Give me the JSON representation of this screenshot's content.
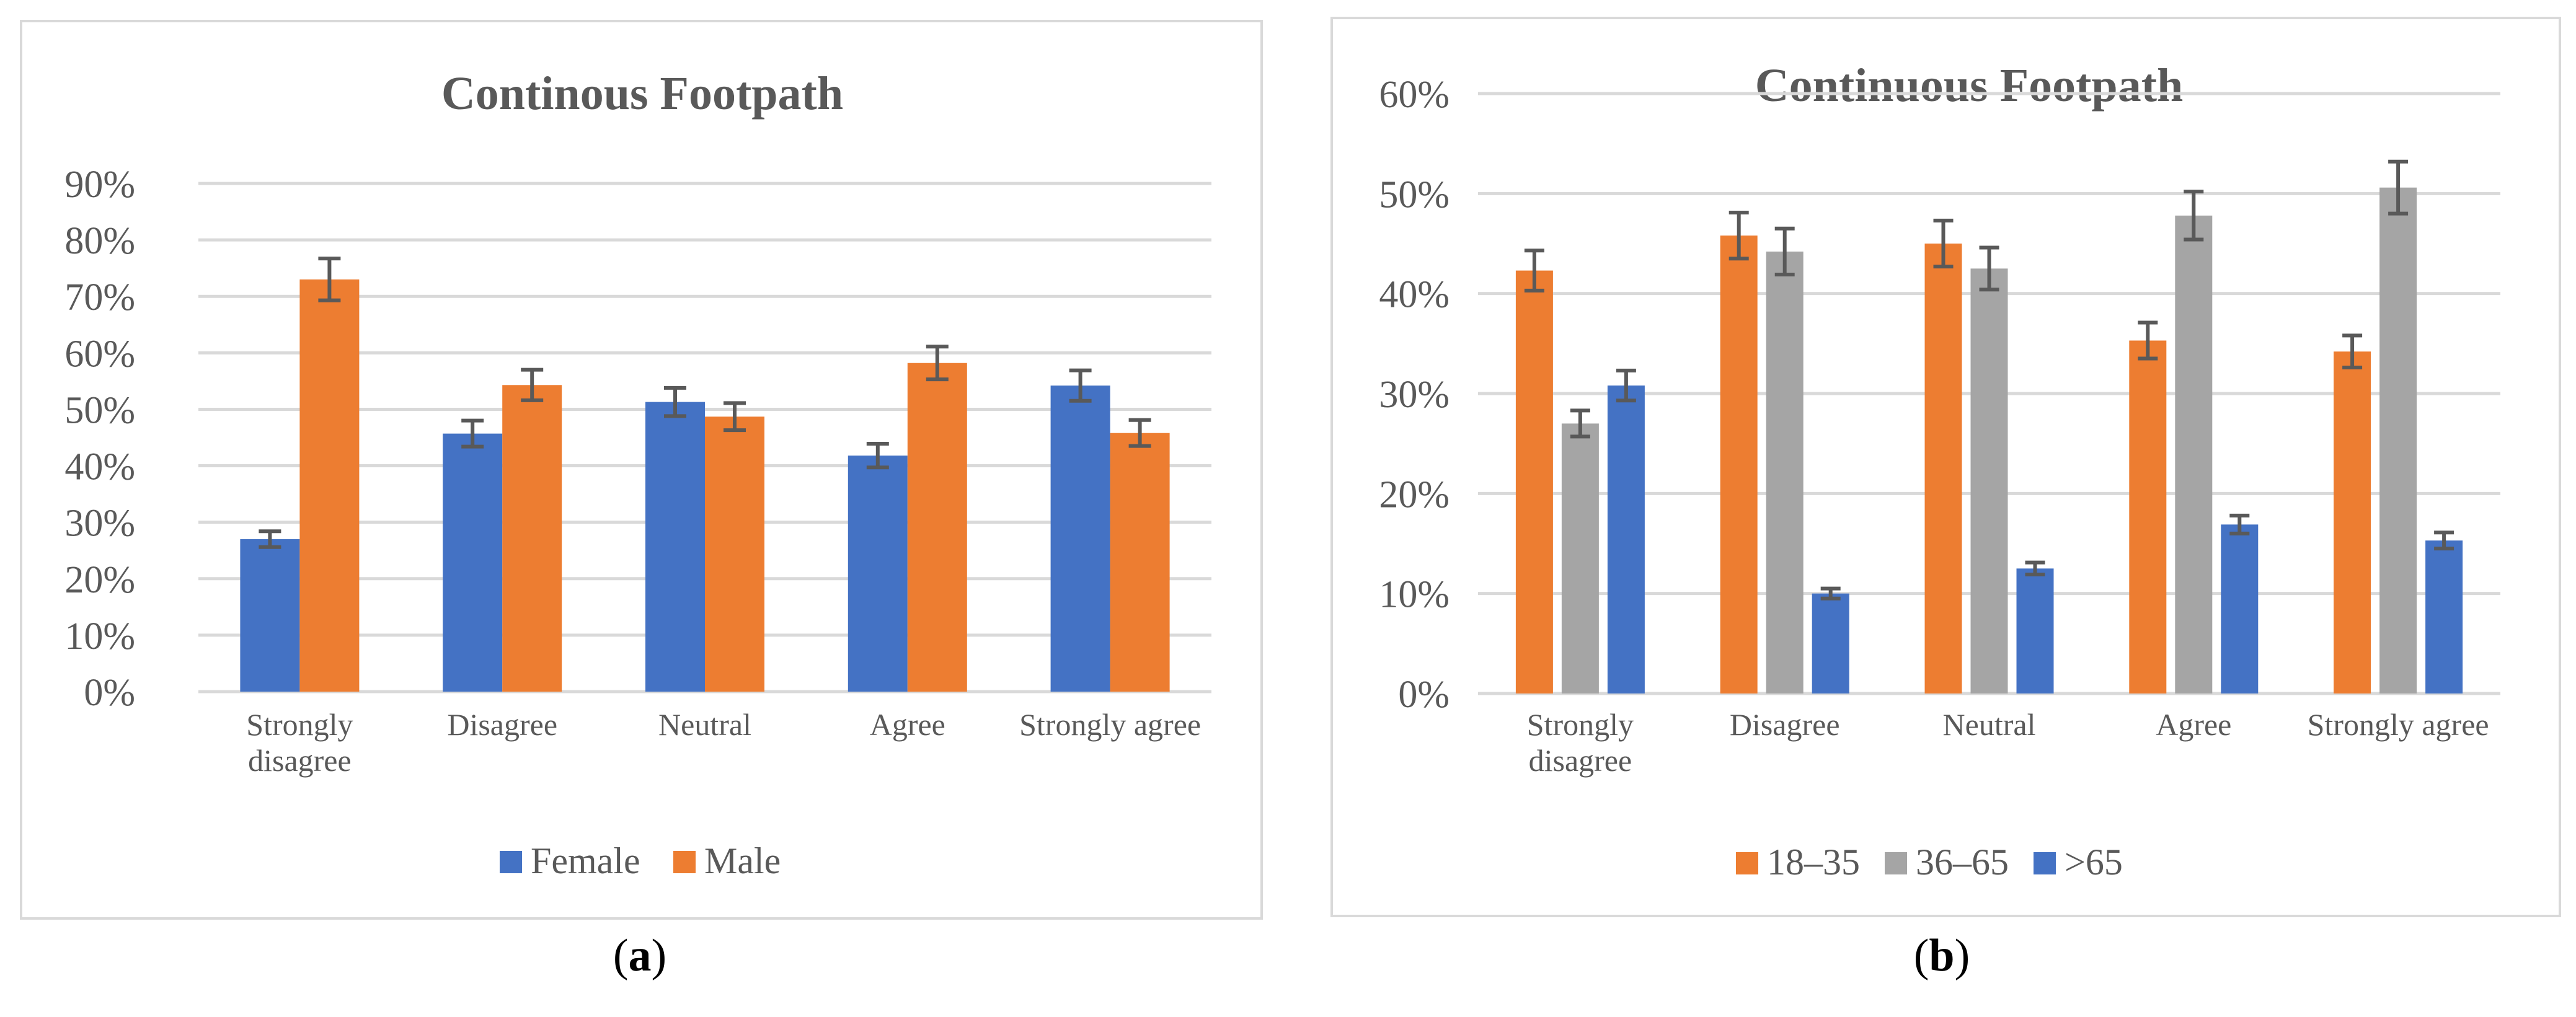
{
  "chart_data": [
    {
      "type": "bar",
      "title": "Continous Footpath",
      "categories": [
        "Strongly disagree",
        "Disagree",
        "Neutral",
        "Agree",
        "Strongly agree"
      ],
      "category_lines": [
        [
          "Strongly",
          "disagree"
        ],
        [
          "Disagree"
        ],
        [
          "Neutral"
        ],
        [
          "Agree"
        ],
        [
          "Strongly agree"
        ]
      ],
      "series": [
        {
          "name": "Female",
          "color": "#4472c4",
          "values": [
            27,
            45.7,
            51.3,
            41.8,
            54.2
          ],
          "errors": [
            1.4,
            2.3,
            2.5,
            2.1,
            2.7
          ]
        },
        {
          "name": "Male",
          "color": "#ed7d31",
          "values": [
            73,
            54.3,
            48.7,
            58.2,
            45.8
          ],
          "errors": [
            3.7,
            2.7,
            2.4,
            2.9,
            2.3
          ]
        }
      ],
      "y_ticks": [
        "0%",
        "10%",
        "20%",
        "30%",
        "40%",
        "50%",
        "60%",
        "70%",
        "80%",
        "90%"
      ],
      "ylim": [
        0,
        90
      ],
      "xlabel": "",
      "ylabel": "",
      "grid": true,
      "legend": "bottom"
    },
    {
      "type": "bar",
      "title": "Continuous Footpath",
      "categories": [
        "Strongly disagree",
        "Disagree",
        "Neutral",
        "Agree",
        "Strongly agree"
      ],
      "category_lines": [
        [
          "Strongly",
          "disagree"
        ],
        [
          "Disagree"
        ],
        [
          "Neutral"
        ],
        [
          "Agree"
        ],
        [
          "Strongly agree"
        ]
      ],
      "series": [
        {
          "name": "18–35",
          "color": "#ed7d31",
          "values": [
            42.3,
            45.8,
            45.0,
            35.3,
            34.2
          ],
          "errors": [
            2.0,
            2.3,
            2.3,
            1.8,
            1.6
          ]
        },
        {
          "name": "36–65",
          "color": "#a5a5a5",
          "values": [
            27.0,
            44.2,
            42.5,
            47.8,
            50.6
          ],
          "errors": [
            1.3,
            2.3,
            2.1,
            2.4,
            2.6
          ]
        },
        {
          "name": ">65",
          "color": "#4472c4",
          "values": [
            30.8,
            10.0,
            12.5,
            16.9,
            15.3
          ],
          "errors": [
            1.5,
            0.5,
            0.6,
            0.9,
            0.8
          ]
        }
      ],
      "y_ticks": [
        "0%",
        "10%",
        "20%",
        "30%",
        "40%",
        "50%",
        "60%"
      ],
      "ylim": [
        0,
        60
      ],
      "xlabel": "",
      "ylabel": "",
      "grid": true,
      "legend": "bottom"
    }
  ],
  "captions": [
    {
      "prefix": "(",
      "letter": "a",
      "suffix": ")"
    },
    {
      "prefix": "(",
      "letter": "b",
      "suffix": ")"
    }
  ]
}
